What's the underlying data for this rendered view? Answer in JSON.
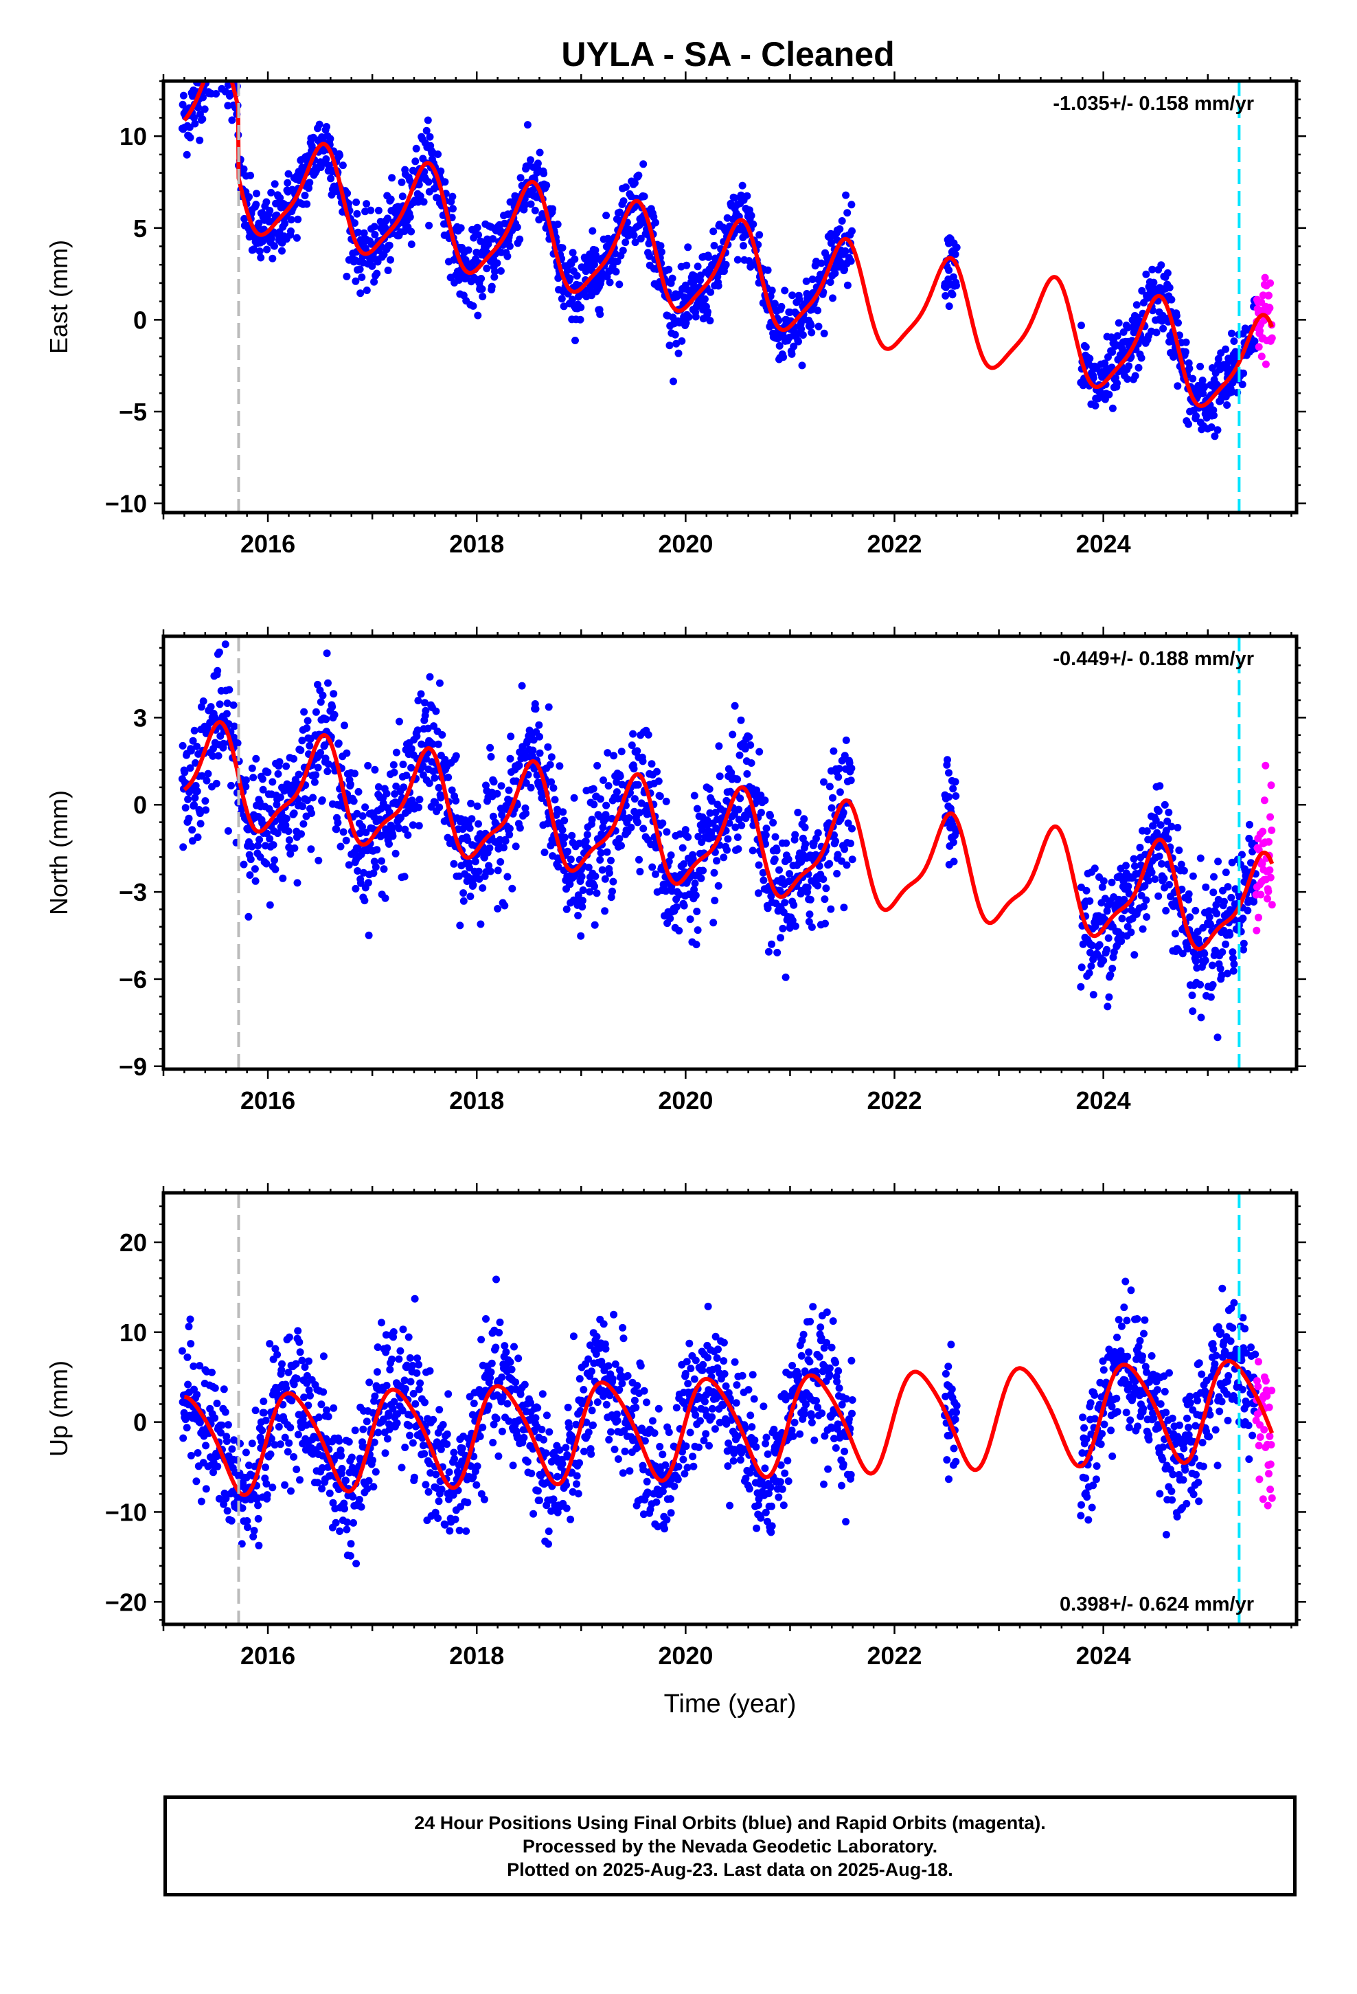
{
  "title": "UYLA  - SA - Cleaned",
  "colors": {
    "final": "#0000ff",
    "rapid": "#ff00ff",
    "model": "#ff0000",
    "gray_line": "#bbbbbb",
    "cyan_line": "#00e5ff"
  },
  "chart_data": [
    {
      "type": "scatter",
      "component": "east",
      "ylabel": "East (mm)",
      "ylim": [
        -10.5,
        13
      ],
      "yticks": [
        -10,
        -5,
        0,
        5,
        10
      ],
      "xlim": [
        2015.0,
        2025.85
      ],
      "xticks": [
        2016,
        2018,
        2020,
        2022,
        2024
      ],
      "rate_text": "-1.035+/- 0.158 mm/yr",
      "rate_position": "top-right",
      "vlines": [
        2015.72,
        2025.3
      ],
      "rate": -1.035,
      "offset": 1.5,
      "offset_epoch": 2015.72,
      "annual_amplitude": 2.6,
      "semiannual_amplitude": 0.6,
      "scatter_sd": 1.0,
      "intercept": 7.9
    },
    {
      "type": "scatter",
      "component": "north",
      "ylabel": "North (mm)",
      "ylim": [
        -9.1,
        5.8
      ],
      "yticks": [
        -9,
        -6,
        -3,
        0,
        3
      ],
      "xlim": [
        2015.0,
        2025.85
      ],
      "xticks": [
        2016,
        2018,
        2020,
        2022,
        2024
      ],
      "rate_text": "-0.449+/- 0.188 mm/yr",
      "rate_position": "top-right",
      "vlines": [
        2015.72,
        2025.3
      ],
      "rate": -0.449,
      "annual_amplitude": 1.6,
      "semiannual_amplitude": 0.5,
      "scatter_sd": 1.1,
      "intercept": 1.0
    },
    {
      "type": "scatter",
      "component": "up",
      "ylabel": "Up (mm)",
      "xlabel": "Time (year)",
      "ylim": [
        -22.5,
        25.5
      ],
      "yticks": [
        -20,
        -10,
        0,
        10,
        20
      ],
      "xlim": [
        2015.0,
        2025.85
      ],
      "xticks": [
        2016,
        2018,
        2020,
        2022,
        2024
      ],
      "rate_text": "0.398+/- 0.624 mm/yr",
      "rate_position": "bottom-right",
      "vlines": [
        2015.72,
        2025.3
      ],
      "rate": 0.398,
      "annual_amplitude": 5.4,
      "semiannual_amplitude": 0.8,
      "scatter_sd": 3.6,
      "intercept": -2.4
    }
  ],
  "data_gaps": [
    [
      2021.6,
      2022.48
    ],
    [
      2022.6,
      2023.78
    ]
  ],
  "rapid_start": 2025.46,
  "caption": {
    "line1": "24 Hour Positions Using Final Orbits (blue) and Rapid Orbits (magenta).",
    "line2": "Processed by the Nevada Geodetic Laboratory.",
    "line3": "Plotted on 2025-Aug-23. Last data on 2025-Aug-18."
  }
}
